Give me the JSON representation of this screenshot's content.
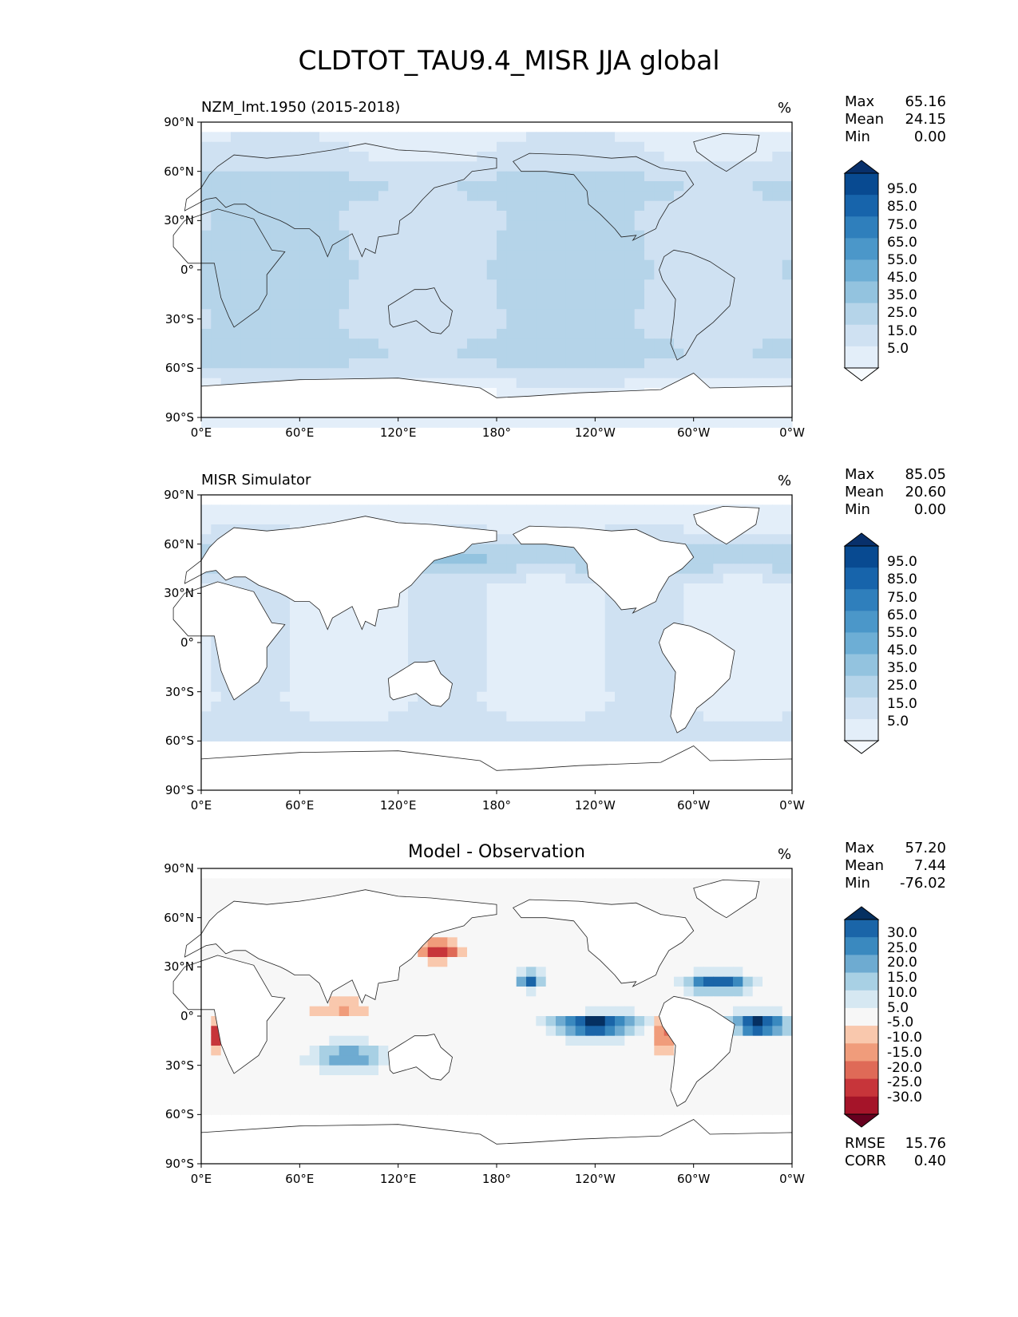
{
  "title": "CLDTOT_TAU9.4_MISR JJA global",
  "colors": {
    "blues": [
      "#f7fbff",
      "#e3eef9",
      "#cfe1f2",
      "#b5d4e9",
      "#93c3df",
      "#6daed5",
      "#4b97c9",
      "#2f7fbc",
      "#1764ab",
      "#084a91",
      "#08306b"
    ],
    "diverging": [
      "#67001f",
      "#a51429",
      "#c7353a",
      "#df6a57",
      "#f09c7b",
      "#f9c8ad",
      "#f7f7f7",
      "#d6e8f2",
      "#a8d0e4",
      "#6eabd1",
      "#3a89bf",
      "#1a65a8",
      "#053061"
    ]
  },
  "axes": {
    "lat_ticks": [
      "90°N",
      "60°N",
      "30°N",
      "0°",
      "30°S",
      "60°S",
      "90°S"
    ],
    "lon_ticks": [
      "0°E",
      "60°E",
      "120°E",
      "180°",
      "120°W",
      "60°W",
      "0°W"
    ]
  },
  "panels": [
    {
      "title_left": "NZM_lmt.1950 (2015-2018)",
      "title_center": "",
      "unit": "%",
      "stats": [
        {
          "label": "Max",
          "value": "65.16"
        },
        {
          "label": "Mean",
          "value": "24.15"
        },
        {
          "label": "Min",
          "value": "0.00"
        }
      ],
      "colorbar": {
        "palette": "blues",
        "labels": [
          "95.0",
          "85.0",
          "75.0",
          "65.0",
          "55.0",
          "45.0",
          "35.0",
          "25.0",
          "15.0",
          "5.0"
        ]
      }
    },
    {
      "title_left": "MISR Simulator",
      "title_center": "",
      "unit": "%",
      "stats": [
        {
          "label": "Max",
          "value": "85.05"
        },
        {
          "label": "Mean",
          "value": "20.60"
        },
        {
          "label": "Min",
          "value": "0.00"
        }
      ],
      "colorbar": {
        "palette": "blues",
        "labels": [
          "95.0",
          "85.0",
          "75.0",
          "65.0",
          "55.0",
          "45.0",
          "35.0",
          "25.0",
          "15.0",
          "5.0"
        ]
      }
    },
    {
      "title_left": "",
      "title_center": "Model - Observation",
      "unit": "%",
      "stats": [
        {
          "label": "Max",
          "value": "57.20"
        },
        {
          "label": "Mean",
          "value": "7.44"
        },
        {
          "label": "Min",
          "value": "-76.02"
        }
      ],
      "colorbar": {
        "palette": "diverging",
        "labels": [
          "30.0",
          "25.0",
          "20.0",
          "15.0",
          "10.0",
          "5.0",
          "-5.0",
          "-10.0",
          "-15.0",
          "-20.0",
          "-25.0",
          "-30.0"
        ]
      },
      "metrics": [
        {
          "label": "RMSE",
          "value": "15.76"
        },
        {
          "label": "CORR",
          "value": "0.40"
        }
      ]
    }
  ]
}
